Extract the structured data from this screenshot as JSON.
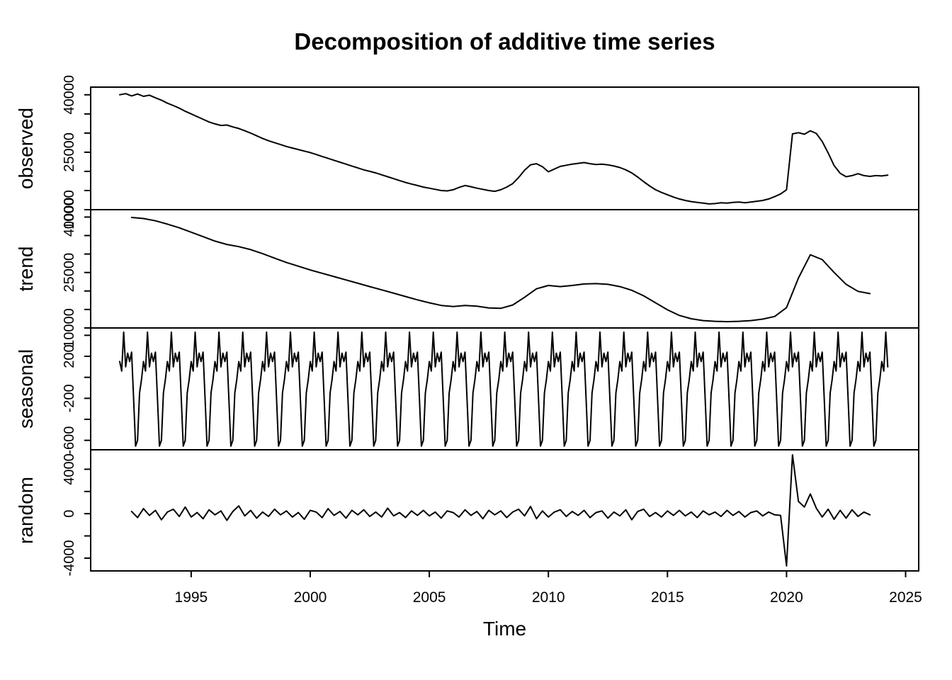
{
  "title": "Decomposition of additive time series",
  "xlabel": "Time",
  "chart_data": {
    "type": "line",
    "title": "Decomposition of additive time series",
    "xlabel": "Time",
    "line_color": "#000000",
    "x_range": [
      1990.78,
      2025.55
    ],
    "x_ticks": [
      {
        "value": 1995,
        "text": "1995"
      },
      {
        "value": 2000,
        "text": "2000"
      },
      {
        "value": 2005,
        "text": "2005"
      },
      {
        "value": 2010,
        "text": "2010"
      },
      {
        "value": 2015,
        "text": "2015"
      },
      {
        "value": 2020,
        "text": "2020"
      },
      {
        "value": 2025,
        "text": "2025"
      }
    ],
    "panels": [
      {
        "name": "observed",
        "ylim": [
          10000,
          42000
        ],
        "tick_values": [
          10000,
          15000,
          20000,
          25000,
          30000,
          35000,
          40000
        ],
        "tick_labels": [
          {
            "value": 10000,
            "text": "10000"
          },
          {
            "value": 25000,
            "text": "25000"
          },
          {
            "value": 40000,
            "text": "40000"
          }
        ],
        "x0": 1992.0,
        "dx": 0.25,
        "values": [
          40000,
          40300,
          39700,
          40200,
          39600,
          39900,
          39200,
          38600,
          37800,
          37200,
          36500,
          35700,
          35000,
          34300,
          33600,
          32900,
          32400,
          32000,
          32100,
          31600,
          31200,
          30600,
          30000,
          29300,
          28600,
          28000,
          27500,
          27000,
          26500,
          26100,
          25700,
          25300,
          24900,
          24400,
          23900,
          23400,
          22900,
          22400,
          21900,
          21400,
          20900,
          20400,
          20000,
          19600,
          19100,
          18600,
          18100,
          17600,
          17100,
          16700,
          16300,
          15900,
          15600,
          15300,
          15000,
          14900,
          15200,
          15800,
          16300,
          16000,
          15600,
          15300,
          15000,
          14800,
          15200,
          15900,
          16800,
          18400,
          20300,
          21700,
          22000,
          21200,
          19900,
          20600,
          21300,
          21600,
          21900,
          22100,
          22300,
          22000,
          21800,
          21900,
          21700,
          21400,
          21000,
          20400,
          19600,
          18500,
          17300,
          16200,
          15200,
          14500,
          13900,
          13300,
          12800,
          12400,
          12100,
          11900,
          11700,
          11500,
          11600,
          11800,
          11700,
          11900,
          12000,
          11800,
          12000,
          12200,
          12400,
          12800,
          13400,
          14100,
          15200,
          29800,
          30100,
          29700,
          30600,
          29900,
          27800,
          24800,
          21500,
          19500,
          18600,
          18900,
          19400,
          18900,
          18700,
          18900,
          18800,
          19000
        ]
      },
      {
        "name": "trend",
        "ylim": [
          10000,
          42000
        ],
        "tick_values": [
          10000,
          15000,
          20000,
          25000,
          30000,
          35000,
          40000
        ],
        "tick_labels": [
          {
            "value": 10000,
            "text": "10000"
          },
          {
            "value": 25000,
            "text": "25000"
          },
          {
            "value": 40000,
            "text": "40000"
          }
        ],
        "x0": 1992.5,
        "dx": 0.5,
        "values": [
          39900,
          39600,
          39000,
          38100,
          37100,
          35900,
          34700,
          33500,
          32600,
          32000,
          31200,
          30100,
          28900,
          27700,
          26700,
          25700,
          24800,
          23900,
          23000,
          22100,
          21200,
          20300,
          19400,
          18500,
          17600,
          16800,
          16100,
          15800,
          16100,
          15900,
          15400,
          15300,
          16200,
          18300,
          20600,
          21500,
          21200,
          21500,
          21900,
          22000,
          21800,
          21200,
          20200,
          18700,
          16800,
          14900,
          13400,
          12500,
          12000,
          11800,
          11700,
          11800,
          12000,
          12400,
          13100,
          15500,
          23500,
          29800,
          28500,
          25000,
          21800,
          19900,
          19300
        ]
      },
      {
        "name": "seasonal",
        "ylim": [
          -690,
          470
        ],
        "tick_values": [
          -600,
          -400,
          -200,
          0,
          200,
          400
        ],
        "tick_labels": [
          {
            "value": -600,
            "text": "-600"
          },
          {
            "value": -200,
            "text": "-200"
          },
          {
            "value": 200,
            "text": "200"
          }
        ],
        "x0": 1992.0,
        "dx": 0.08333333,
        "x_end": 2024.25,
        "pattern": [
          150,
          60,
          430,
          100,
          230,
          150,
          240,
          -200,
          -655,
          -600,
          -150,
          -20
        ]
      },
      {
        "name": "random",
        "ylim": [
          -5150,
          5750
        ],
        "tick_values": [
          -4000,
          -2000,
          0,
          2000,
          4000
        ],
        "tick_labels": [
          {
            "value": -4000,
            "text": "-4000"
          },
          {
            "value": 0,
            "text": "0"
          },
          {
            "value": 4000,
            "text": "4000"
          }
        ],
        "x0": 1992.5,
        "dx": 0.25,
        "values": [
          200,
          -350,
          450,
          -150,
          300,
          -550,
          150,
          400,
          -250,
          600,
          -300,
          100,
          -450,
          350,
          -100,
          250,
          -600,
          200,
          700,
          -200,
          300,
          -400,
          150,
          -250,
          400,
          -100,
          250,
          -300,
          100,
          -500,
          300,
          150,
          -350,
          450,
          -150,
          200,
          -400,
          300,
          -100,
          350,
          -250,
          150,
          -300,
          500,
          -200,
          100,
          -350,
          250,
          -150,
          300,
          -200,
          150,
          -400,
          250,
          100,
          -300,
          350,
          -150,
          200,
          -450,
          300,
          -100,
          250,
          -350,
          150,
          400,
          -200,
          650,
          -450,
          250,
          -300,
          150,
          350,
          -250,
          200,
          -150,
          300,
          -350,
          100,
          250,
          -400,
          150,
          -200,
          350,
          -550,
          200,
          400,
          -250,
          100,
          -300,
          250,
          -150,
          300,
          -200,
          150,
          -350,
          250,
          -100,
          150,
          -250,
          300,
          -150,
          200,
          -300,
          100,
          250,
          -200,
          150,
          -100,
          -150,
          -4700,
          5300,
          1100,
          600,
          1780,
          500,
          -300,
          400,
          -500,
          300,
          -400,
          350,
          -250,
          150,
          -100
        ]
      }
    ]
  }
}
